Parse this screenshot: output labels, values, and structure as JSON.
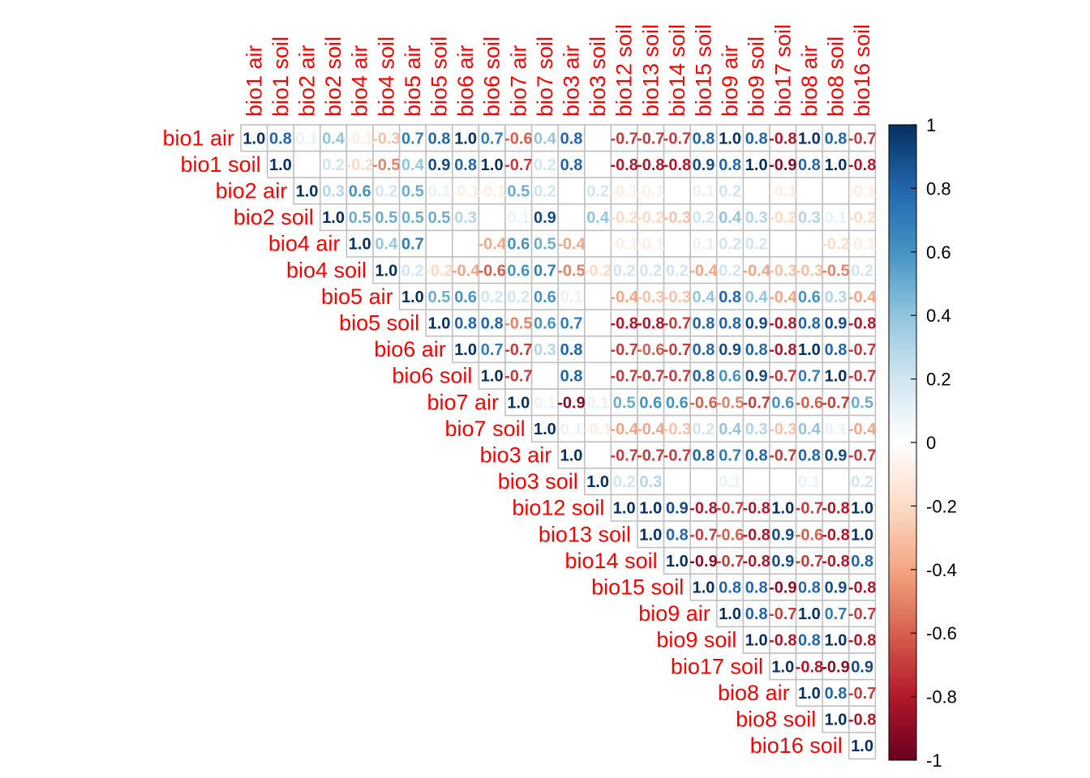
{
  "chart_data": {
    "type": "heatmap",
    "layout": "upper-triangle",
    "title": "",
    "variables": [
      "bio1 air",
      "bio1 soil",
      "bio2 air",
      "bio2 soil",
      "bio4 air",
      "bio4 soil",
      "bio5 air",
      "bio5 soil",
      "bio6 air",
      "bio6 soil",
      "bio7 air",
      "bio7 soil",
      "bio3 air",
      "bio3 soil",
      "bio12 soil",
      "bio13 soil",
      "bio14 soil",
      "bio15 soil",
      "bio9 air",
      "bio9 soil",
      "bio17 soil",
      "bio8 air",
      "bio8 soil",
      "bio16 soil"
    ],
    "matrix": [
      [
        1.0,
        0.8,
        0.1,
        0.4,
        -0.1,
        -0.3,
        0.7,
        0.8,
        1.0,
        0.7,
        -0.6,
        0.4,
        0.8,
        0.0,
        -0.7,
        -0.7,
        -0.7,
        0.8,
        1.0,
        0.8,
        -0.8,
        1.0,
        0.8,
        -0.7
      ],
      [
        null,
        1.0,
        0.0,
        0.2,
        -0.2,
        -0.5,
        0.4,
        0.9,
        0.8,
        1.0,
        -0.7,
        0.2,
        0.8,
        0.0,
        -0.8,
        -0.8,
        -0.8,
        0.9,
        0.8,
        1.0,
        -0.9,
        0.8,
        1.0,
        -0.8
      ],
      [
        null,
        null,
        1.0,
        0.3,
        0.6,
        0.2,
        0.5,
        0.1,
        -0.1,
        -0.1,
        0.5,
        0.2,
        0.0,
        0.2,
        -0.1,
        -0.1,
        0.0,
        0.1,
        0.2,
        0.0,
        -0.1,
        0.0,
        0.0,
        -0.1
      ],
      [
        null,
        null,
        null,
        1.0,
        0.5,
        0.5,
        0.5,
        0.5,
        0.3,
        0.0,
        0.1,
        0.9,
        0.0,
        0.4,
        -0.2,
        -0.2,
        -0.3,
        0.2,
        0.4,
        0.3,
        -0.2,
        0.3,
        0.1,
        -0.2
      ],
      [
        null,
        null,
        null,
        null,
        1.0,
        0.4,
        0.7,
        0.0,
        0.0,
        -0.4,
        0.6,
        0.5,
        -0.4,
        0.0,
        -0.1,
        -0.1,
        0.0,
        0.1,
        0.2,
        0.2,
        0.0,
        0.0,
        -0.2,
        -0.1
      ],
      [
        null,
        null,
        null,
        null,
        null,
        1.0,
        0.2,
        -0.2,
        -0.4,
        -0.6,
        0.6,
        0.7,
        -0.5,
        -0.2,
        0.2,
        0.2,
        0.2,
        -0.4,
        0.2,
        -0.4,
        -0.3,
        -0.3,
        -0.5,
        0.2
      ],
      [
        null,
        null,
        null,
        null,
        null,
        null,
        1.0,
        0.5,
        0.6,
        0.2,
        0.2,
        0.6,
        0.1,
        0.0,
        -0.4,
        -0.3,
        -0.3,
        0.4,
        0.8,
        0.4,
        -0.4,
        0.6,
        0.3,
        -0.4
      ],
      [
        null,
        null,
        null,
        null,
        null,
        null,
        null,
        1.0,
        0.8,
        0.8,
        -0.5,
        0.6,
        0.7,
        0.0,
        -0.8,
        -0.8,
        -0.7,
        0.8,
        0.8,
        0.9,
        -0.8,
        0.8,
        0.9,
        -0.8
      ],
      [
        null,
        null,
        null,
        null,
        null,
        null,
        null,
        null,
        1.0,
        0.7,
        -0.7,
        0.3,
        0.8,
        0.0,
        -0.7,
        -0.6,
        -0.7,
        0.8,
        0.9,
        0.8,
        -0.8,
        1.0,
        0.8,
        -0.7
      ],
      [
        null,
        null,
        null,
        null,
        null,
        null,
        null,
        null,
        null,
        1.0,
        -0.7,
        0.0,
        0.8,
        0.0,
        -0.7,
        -0.7,
        -0.7,
        0.8,
        0.6,
        0.9,
        -0.7,
        0.7,
        1.0,
        -0.7
      ],
      [
        null,
        null,
        null,
        null,
        null,
        null,
        null,
        null,
        null,
        null,
        1.0,
        0.1,
        -0.9,
        0.1,
        0.5,
        0.6,
        0.6,
        -0.6,
        -0.5,
        -0.7,
        0.6,
        -0.6,
        -0.7,
        0.5
      ],
      [
        null,
        null,
        null,
        null,
        null,
        null,
        null,
        null,
        null,
        null,
        null,
        1.0,
        0.1,
        -0.1,
        -0.4,
        -0.4,
        -0.3,
        0.2,
        0.4,
        0.3,
        -0.3,
        0.4,
        0.1,
        -0.4
      ],
      [
        null,
        null,
        null,
        null,
        null,
        null,
        null,
        null,
        null,
        null,
        null,
        null,
        1.0,
        0.0,
        -0.7,
        -0.7,
        -0.7,
        0.8,
        0.7,
        0.8,
        -0.7,
        0.8,
        0.9,
        -0.7
      ],
      [
        null,
        null,
        null,
        null,
        null,
        null,
        null,
        null,
        null,
        null,
        null,
        null,
        null,
        1.0,
        0.2,
        0.3,
        0.0,
        0.0,
        0.1,
        0.0,
        0.0,
        0.1,
        0.0,
        0.2
      ],
      [
        null,
        null,
        null,
        null,
        null,
        null,
        null,
        null,
        null,
        null,
        null,
        null,
        null,
        null,
        1.0,
        1.0,
        0.9,
        -0.8,
        -0.7,
        -0.8,
        1.0,
        -0.7,
        -0.8,
        1.0
      ],
      [
        null,
        null,
        null,
        null,
        null,
        null,
        null,
        null,
        null,
        null,
        null,
        null,
        null,
        null,
        null,
        1.0,
        0.8,
        -0.7,
        -0.6,
        -0.8,
        0.9,
        -0.6,
        -0.8,
        1.0
      ],
      [
        null,
        null,
        null,
        null,
        null,
        null,
        null,
        null,
        null,
        null,
        null,
        null,
        null,
        null,
        null,
        null,
        1.0,
        -0.9,
        -0.7,
        -0.8,
        0.9,
        -0.7,
        -0.8,
        0.8
      ],
      [
        null,
        null,
        null,
        null,
        null,
        null,
        null,
        null,
        null,
        null,
        null,
        null,
        null,
        null,
        null,
        null,
        null,
        1.0,
        0.8,
        0.8,
        -0.9,
        0.8,
        0.9,
        -0.8
      ],
      [
        null,
        null,
        null,
        null,
        null,
        null,
        null,
        null,
        null,
        null,
        null,
        null,
        null,
        null,
        null,
        null,
        null,
        null,
        1.0,
        0.8,
        -0.7,
        1.0,
        0.7,
        -0.7
      ],
      [
        null,
        null,
        null,
        null,
        null,
        null,
        null,
        null,
        null,
        null,
        null,
        null,
        null,
        null,
        null,
        null,
        null,
        null,
        null,
        1.0,
        -0.8,
        0.8,
        1.0,
        -0.8
      ],
      [
        null,
        null,
        null,
        null,
        null,
        null,
        null,
        null,
        null,
        null,
        null,
        null,
        null,
        null,
        null,
        null,
        null,
        null,
        null,
        null,
        1.0,
        -0.8,
        -0.9,
        0.9
      ],
      [
        null,
        null,
        null,
        null,
        null,
        null,
        null,
        null,
        null,
        null,
        null,
        null,
        null,
        null,
        null,
        null,
        null,
        null,
        null,
        null,
        null,
        1.0,
        0.8,
        -0.7
      ],
      [
        null,
        null,
        null,
        null,
        null,
        null,
        null,
        null,
        null,
        null,
        null,
        null,
        null,
        null,
        null,
        null,
        null,
        null,
        null,
        null,
        null,
        null,
        1.0,
        -0.8
      ],
      [
        null,
        null,
        null,
        null,
        null,
        null,
        null,
        null,
        null,
        null,
        null,
        null,
        null,
        null,
        null,
        null,
        null,
        null,
        null,
        null,
        null,
        null,
        null,
        1.0
      ]
    ],
    "value_range": [
      -1,
      1
    ],
    "colorbar": {
      "ticks": [
        1,
        0.8,
        0.6,
        0.4,
        0.2,
        0,
        -0.2,
        -0.4,
        -0.6,
        -0.8,
        -1
      ],
      "tick_labels": [
        "1",
        "0.8",
        "0.6",
        "0.4",
        "0.2",
        "0",
        "-0.2",
        "-0.4",
        "-0.6",
        "-0.8",
        "-1"
      ],
      "placement": "right"
    },
    "colors": {
      "label": "#ff0000",
      "cell_border": "#bebebe",
      "scale": [
        "#67001f",
        "#b2182b",
        "#d6604d",
        "#f4a582",
        "#fddbc7",
        "#ffffff",
        "#d1e5f0",
        "#92c5de",
        "#4393c3",
        "#2166ac",
        "#053061"
      ]
    },
    "grid": true
  }
}
